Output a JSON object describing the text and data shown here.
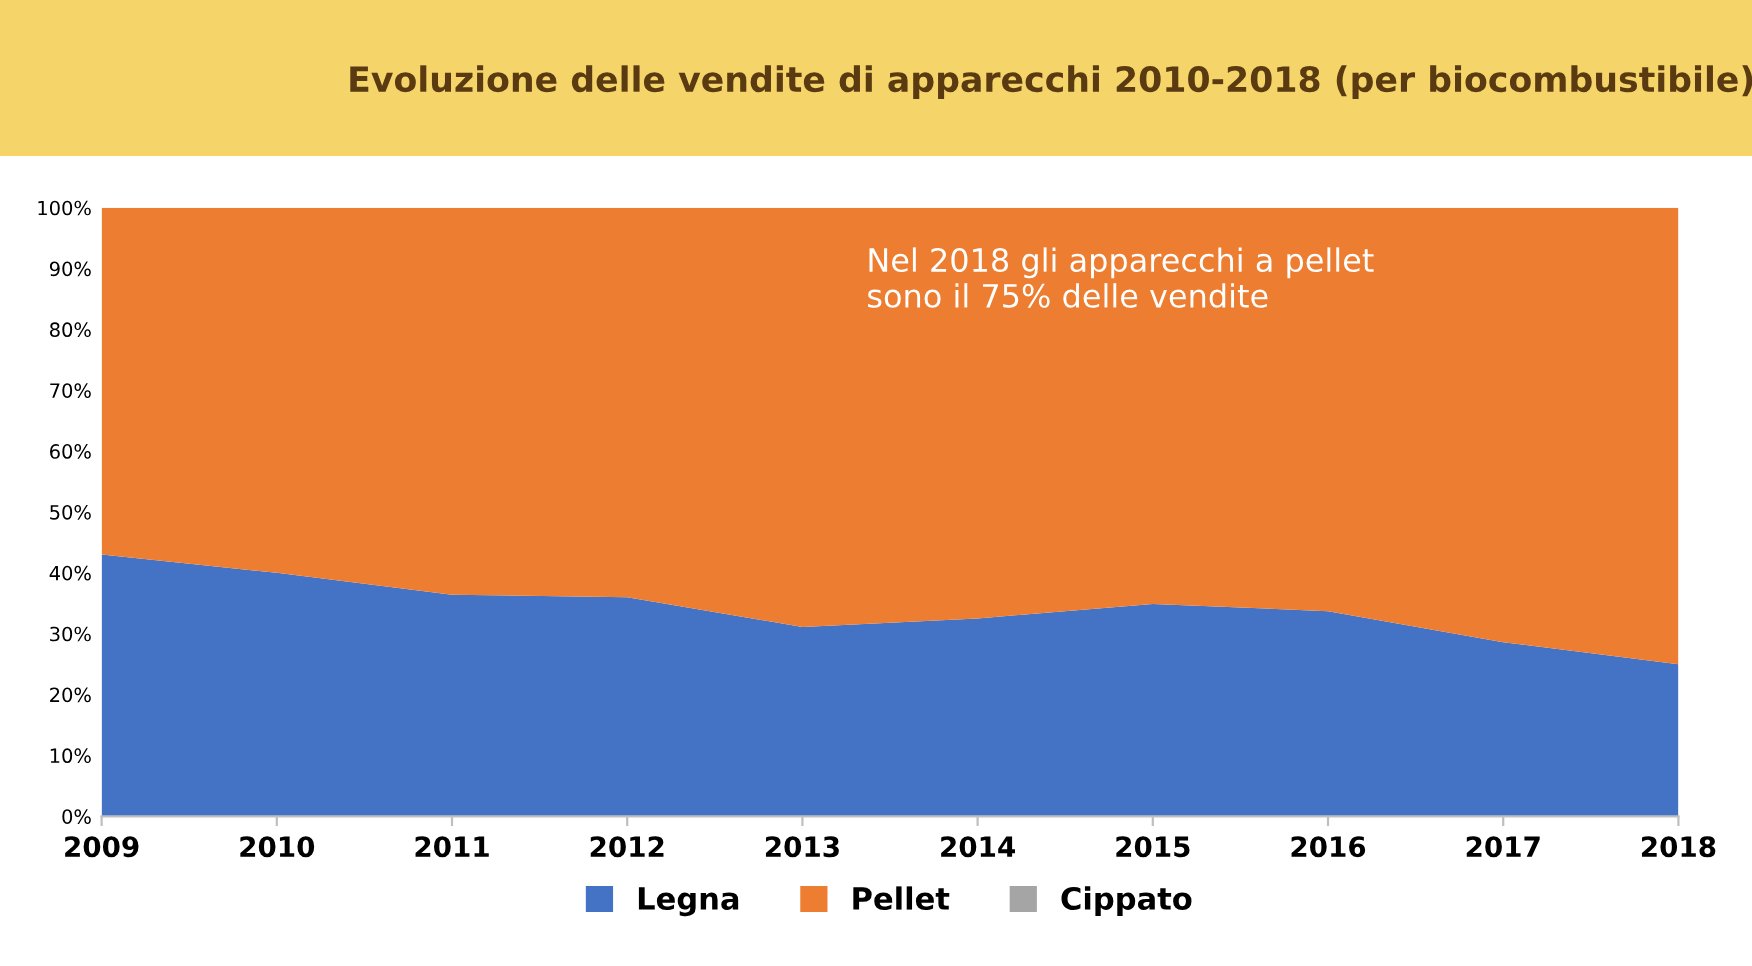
{
  "chart_data": {
    "type": "area",
    "stacked": true,
    "title": "Evoluzione delle vendite di apparecchi 2010-2018 (per biocombustibile)",
    "categories": [
      "2009",
      "2010",
      "2011",
      "2012",
      "2013",
      "2014",
      "2015",
      "2016",
      "2017",
      "2018"
    ],
    "series": [
      {
        "name": "Legna",
        "color": "#4472c4",
        "values": [
          43,
          40,
          36.4,
          36,
          31.1,
          32.5,
          34.9,
          33.7,
          28.6,
          25
        ]
      },
      {
        "name": "Pellet",
        "color": "#ed7d31",
        "values": [
          57,
          60,
          63.6,
          64,
          68.9,
          67.5,
          65.1,
          66.3,
          71.4,
          75
        ]
      },
      {
        "name": "Cippato",
        "color": "#a5a5a5",
        "values": [
          null,
          null,
          null,
          null,
          null,
          null,
          null,
          null,
          null,
          null
        ]
      }
    ],
    "ylim": [
      0,
      100
    ],
    "yticks": [
      {
        "value": 0,
        "label": "0%"
      },
      {
        "value": 10,
        "label": "10%"
      },
      {
        "value": 20,
        "label": "20%"
      },
      {
        "value": 30,
        "label": "30%"
      },
      {
        "value": 40,
        "label": "40%"
      },
      {
        "value": 50,
        "label": "50%"
      },
      {
        "value": 60,
        "label": "60%"
      },
      {
        "value": 70,
        "label": "70%"
      },
      {
        "value": 80,
        "label": "80%"
      },
      {
        "value": 90,
        "label": "90%"
      },
      {
        "value": 100,
        "label": "100%"
      }
    ],
    "annotations": [
      "Nel 2018 gli apparecchi a pellet\nsono il 75% delle vendite"
    ],
    "grid": false,
    "legend": "bottom"
  }
}
